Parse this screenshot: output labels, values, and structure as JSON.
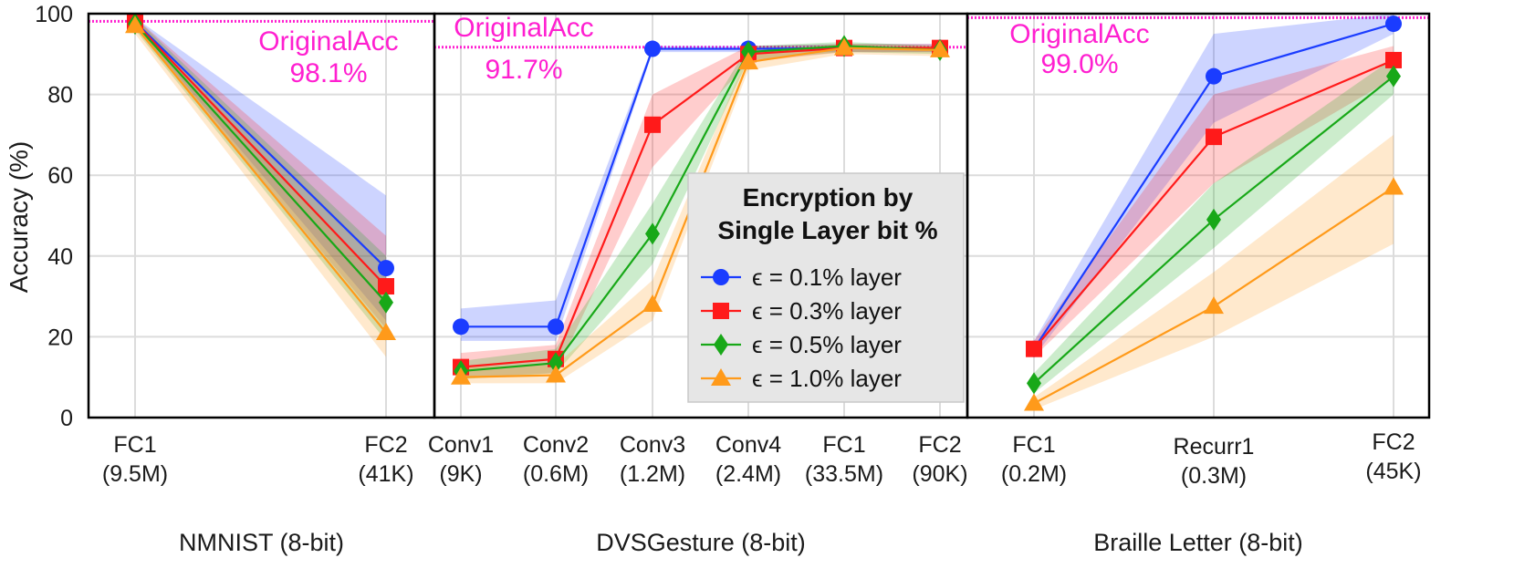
{
  "chart_data": {
    "type": "line",
    "ylabel": "Accuracy (%)",
    "ylim": [
      0,
      100
    ],
    "yticks": [
      "0",
      "20",
      "40",
      "60",
      "80",
      "100"
    ],
    "grid": true,
    "colors": {
      "eps_0.1": "#1a3cff",
      "eps_0.3": "#ff1a1a",
      "eps_0.5": "#18a818",
      "eps_1.0": "#ff9a1a",
      "original": "#ff1fd0"
    },
    "legend": {
      "title_line1": "Encryption by",
      "title_line2": "Single Layer bit %",
      "placement": "center of middle panel",
      "entries": [
        "ϵ = 0.1% layer",
        "ϵ = 0.3% layer",
        "ϵ = 0.5% layer",
        "ϵ = 1.0% layer"
      ],
      "markers": [
        "circle",
        "square",
        "diamond",
        "triangle"
      ]
    },
    "panels": [
      {
        "xlabel": "NMNIST (8-bit)",
        "categories": [
          [
            "FC1",
            "(9.5M)"
          ],
          [
            "FC2",
            "(41K)"
          ]
        ],
        "original_label": "OriginalAcc",
        "original_value_text": "98.1%",
        "original_acc": 98.1,
        "series": [
          {
            "values": [
              98.0,
              37.0
            ],
            "lower": [
              97.0,
              24.0
            ],
            "upper": [
              99.0,
              55.0
            ]
          },
          {
            "values": [
              97.8,
              32.5
            ],
            "lower": [
              96.5,
              22.0
            ],
            "upper": [
              99.0,
              45.0
            ]
          },
          {
            "values": [
              97.5,
              28.5
            ],
            "lower": [
              96.0,
              19.0
            ],
            "upper": [
              99.0,
              40.0
            ]
          },
          {
            "values": [
              97.0,
              21.0
            ],
            "lower": [
              95.0,
              15.0
            ],
            "upper": [
              99.0,
              32.0
            ]
          }
        ]
      },
      {
        "xlabel": "DVSGesture (8-bit)",
        "categories": [
          [
            "Conv1",
            "(9K)"
          ],
          [
            "Conv2",
            "(0.6M)"
          ],
          [
            "Conv3",
            "(1.2M)"
          ],
          [
            "Conv4",
            "(2.4M)"
          ],
          [
            "FC1",
            "(33.5M)"
          ],
          [
            "FC2",
            "(90K)"
          ]
        ],
        "original_label": "OriginalAcc",
        "original_value_text": "91.7%",
        "original_acc": 91.7,
        "series": [
          {
            "values": [
              22.5,
              22.5,
              91.3,
              91.3,
              91.5,
              91.5
            ],
            "lower": [
              19.0,
              19.0,
              90.5,
              90.5,
              90.5,
              90.5
            ],
            "upper": [
              27.0,
              29.0,
              92.0,
              92.0,
              92.5,
              92.5
            ]
          },
          {
            "values": [
              12.5,
              14.5,
              72.5,
              90.0,
              91.5,
              91.5
            ],
            "lower": [
              10.0,
              11.0,
              62.0,
              88.0,
              90.5,
              90.5
            ],
            "upper": [
              16.0,
              18.0,
              80.0,
              92.0,
              92.5,
              92.5
            ]
          },
          {
            "values": [
              11.5,
              13.5,
              45.5,
              90.5,
              92.0,
              91.0
            ],
            "lower": [
              9.5,
              11.0,
              38.0,
              88.5,
              90.5,
              90.0
            ],
            "upper": [
              14.0,
              17.0,
              53.0,
              92.0,
              93.0,
              92.0
            ]
          },
          {
            "values": [
              10.0,
              10.5,
              28.0,
              88.0,
              91.5,
              91.0
            ],
            "lower": [
              8.5,
              8.5,
              24.0,
              86.0,
              90.0,
              89.5
            ],
            "upper": [
              12.5,
              13.0,
              34.0,
              90.5,
              92.5,
              92.0
            ]
          }
        ]
      },
      {
        "xlabel": "Braille Letter (8-bit)",
        "categories": [
          [
            "FC1",
            "(0.2M)"
          ],
          [
            "Recurr1",
            "(0.3M)"
          ],
          [
            "FC2",
            "(45K)"
          ]
        ],
        "original_label": "OriginalAcc",
        "original_value_text": "99.0%",
        "original_acc": 99.0,
        "series": [
          {
            "values": [
              17.0,
              84.5,
              97.5
            ],
            "lower": [
              15.0,
              73.0,
              95.0
            ],
            "upper": [
              19.0,
              95.0,
              100.0
            ]
          },
          {
            "values": [
              17.0,
              69.5,
              88.5
            ],
            "lower": [
              15.0,
              58.0,
              84.0
            ],
            "upper": [
              19.0,
              80.0,
              92.0
            ]
          },
          {
            "values": [
              8.5,
              49.0,
              84.5
            ],
            "lower": [
              6.0,
              42.0,
              80.0
            ],
            "upper": [
              11.0,
              58.0,
              89.0
            ]
          },
          {
            "values": [
              3.5,
              27.5,
              57.0
            ],
            "lower": [
              2.0,
              20.0,
              43.0
            ],
            "upper": [
              5.0,
              36.0,
              70.0
            ]
          }
        ]
      }
    ]
  }
}
